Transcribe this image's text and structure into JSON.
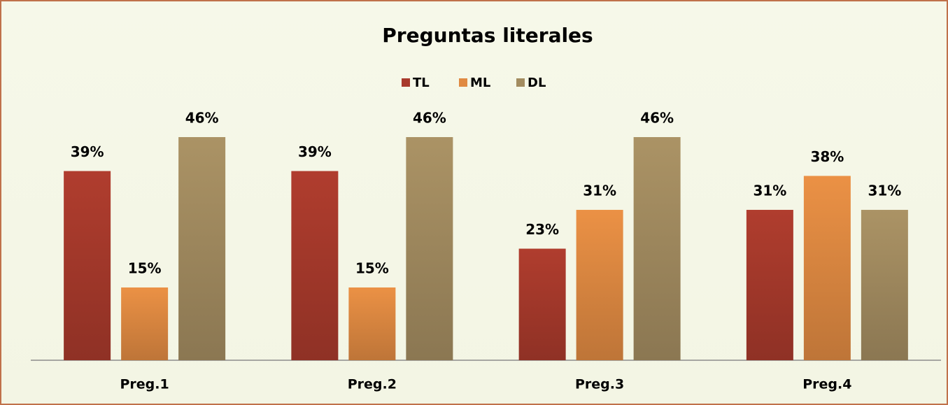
{
  "chart_data": {
    "type": "bar",
    "title": "Preguntas literales",
    "categories": [
      "Preg.1",
      "Preg.2",
      "Preg.3",
      "Preg.4"
    ],
    "series": [
      {
        "name": "TL",
        "color": "#a83a2c",
        "values": [
          39,
          39,
          23,
          31
        ],
        "value_labels": [
          "39%",
          "39%",
          "23%",
          "31%"
        ]
      },
      {
        "name": "ML",
        "color": "#e08a42",
        "values": [
          15,
          15,
          31,
          38
        ],
        "value_labels": [
          "15%",
          "15%",
          "31%",
          "38%"
        ]
      },
      {
        "name": "DL",
        "color": "#a38c60",
        "values": [
          46,
          46,
          46,
          31
        ],
        "value_labels": [
          "46%",
          "46%",
          "46%",
          "31%"
        ]
      }
    ],
    "legend": "top"
  }
}
